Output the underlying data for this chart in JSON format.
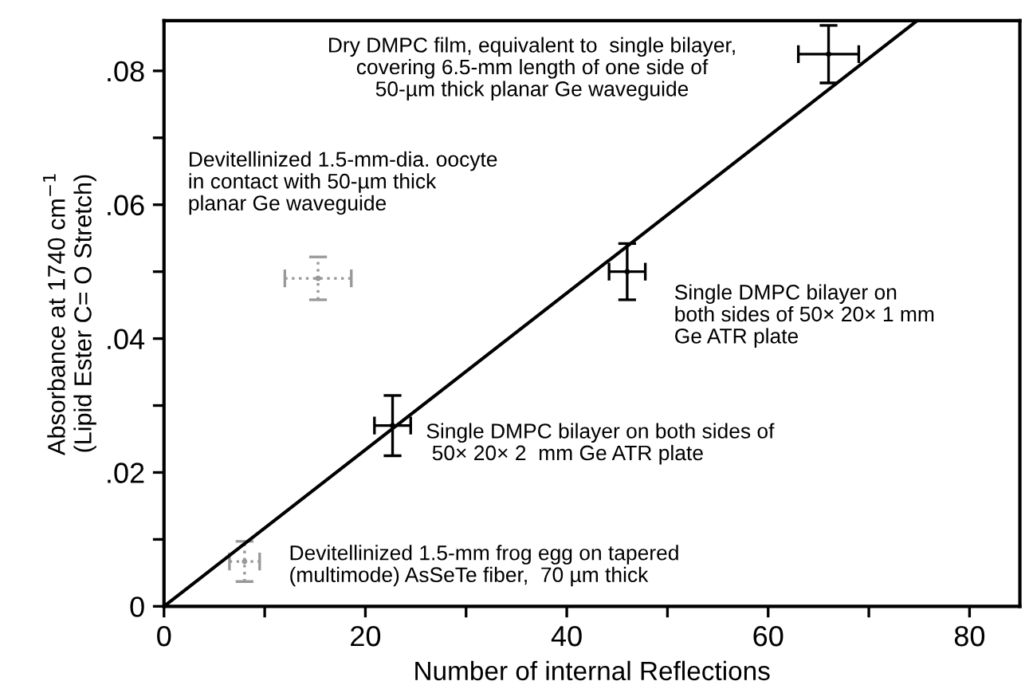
{
  "chart_data": {
    "type": "scatter",
    "xlabel": "Number of internal Reflections",
    "ylabel": "Absorbance at 1740 cm$^{−1}$\n(Lipid Ester C= O Stretch)",
    "xlim": [
      0,
      85
    ],
    "ylim": [
      0,
      0.0875
    ],
    "xticks": [
      0,
      {
        "value": 10,
        "label": null
      },
      20,
      {
        "value": 30,
        "label": null
      },
      40,
      {
        "value": 50,
        "label": null
      },
      60,
      {
        "value": 70,
        "label": null
      },
      80
    ],
    "yticks": [
      {
        "value": 0,
        "label": "0"
      },
      {
        "value": 0.01,
        "label": null
      },
      {
        "value": 0.02,
        "label": ".02"
      },
      {
        "value": 0.03,
        "label": null
      },
      {
        "value": 0.04,
        "label": ".04"
      },
      {
        "value": 0.05,
        "label": null
      },
      {
        "value": 0.06,
        "label": ".06"
      },
      {
        "value": 0.07,
        "label": null
      },
      {
        "value": 0.08,
        "label": ".08"
      }
    ],
    "grid": false,
    "legend": false,
    "series": [
      {
        "color": "#000000",
        "line_style": "solid",
        "x": [
          66,
          46,
          22.7
        ],
        "values": [
          0.0825,
          0.05,
          0.027
        ],
        "errors": [
          0.0043,
          0.0042,
          0.0045
        ],
        "xerrors": [
          3,
          1.8,
          1.8
        ]
      },
      {
        "color": "#999999",
        "line_style": "dotted",
        "x": [
          15.3,
          8
        ],
        "values": [
          0.049,
          0.0067
        ],
        "errors": [
          0.0032,
          0.003
        ],
        "xerrors": [
          3.3,
          1.5
        ]
      },
      {
        "type": "line",
        "color": "#000000",
        "line_style": "solid",
        "x": [
          0,
          74.8
        ],
        "values": [
          0,
          0.0875
        ]
      }
    ],
    "annotations": [
      "Dry DMPC film, equivalent to  single bilayer,\ncovering 6.5-mm length of one side of\n50-µm thick planar Ge waveguide",
      "Devitellinized 1.5-mm-dia. oocyte\nin contact with 50-µm thick\nplanar Ge waveguide",
      "Single DMPC bilayer on\nboth sides of 50× 20× 1 mm\nGe ATR plate",
      "Single DMPC bilayer on both sides of\n 50× 20× 2  mm Ge ATR plate",
      "Devitellinized 1.5-mm frog egg on tapered\n(multimode) AsSeTe fiber,  70 µm thick"
    ]
  }
}
